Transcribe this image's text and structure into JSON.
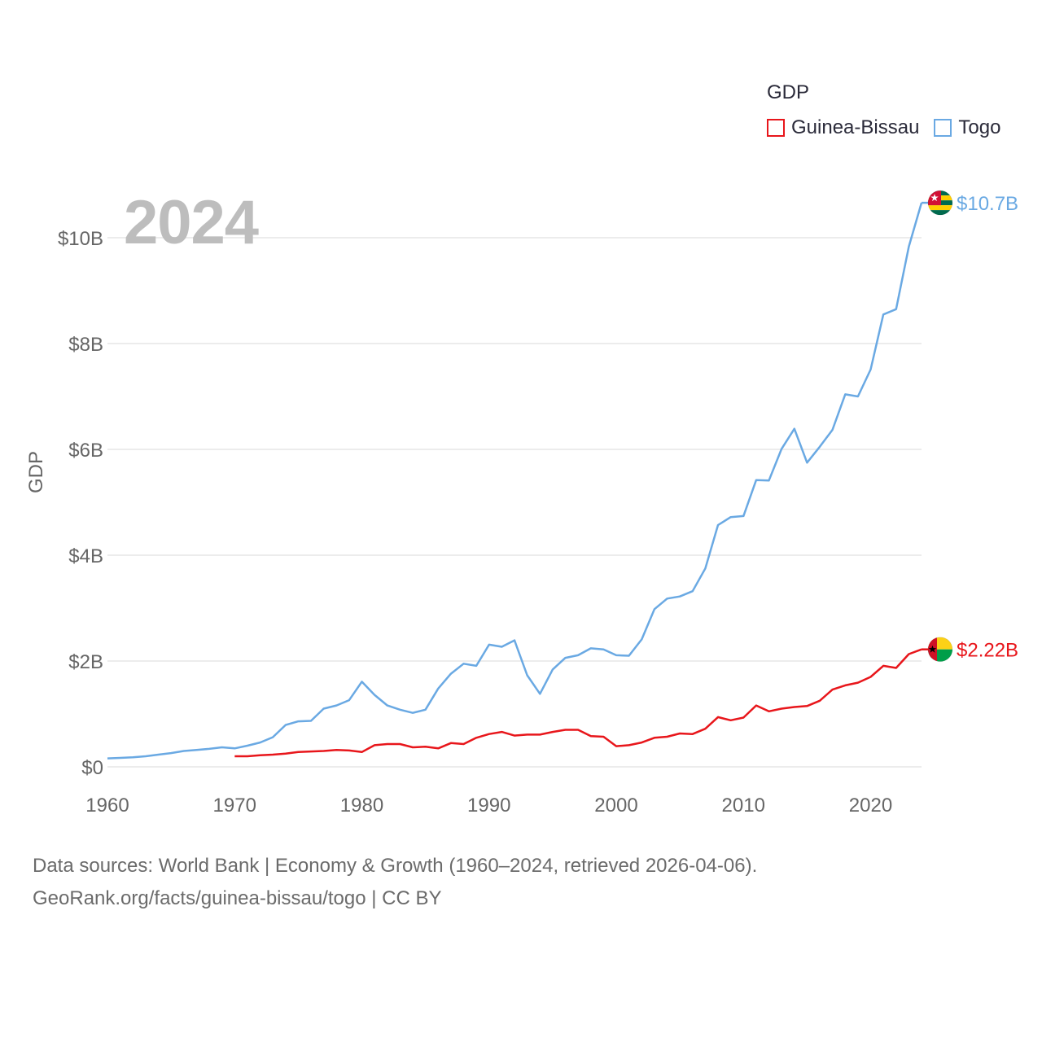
{
  "colors": {
    "togo": "#6aa9e3",
    "guinea_bissau": "#e8161b",
    "grid": "#e6e6e6",
    "axis_text": "#666666"
  },
  "legend": {
    "title": "GDP",
    "items": [
      {
        "label": "Guinea-Bissau",
        "color": "#e8161b"
      },
      {
        "label": "Togo",
        "color": "#6aa9e3"
      }
    ]
  },
  "year_label": "2024",
  "source": {
    "line1": "Data sources: World Bank | Economy & Growth (1960–2024, retrieved 2026-04-06).",
    "line2": "GeoRank.org/facts/guinea-bissau/togo | CC BY"
  },
  "chart_data": {
    "type": "line",
    "ylabel": "GDP",
    "xlabel": "",
    "xlim": [
      1960,
      2024
    ],
    "ylim": [
      0,
      10.7
    ],
    "x_ticks": [
      "1960",
      "1970",
      "1980",
      "1990",
      "2000",
      "2010",
      "2020"
    ],
    "y_ticks": [
      {
        "value": 0,
        "label": "$0"
      },
      {
        "value": 2,
        "label": "$2B"
      },
      {
        "value": 4,
        "label": "$4B"
      },
      {
        "value": 6,
        "label": "$6B"
      },
      {
        "value": 8,
        "label": "$8B"
      },
      {
        "value": 10,
        "label": "$10B"
      }
    ],
    "units": "USD billions",
    "series": [
      {
        "name": "Togo",
        "end_label": "$10.7B",
        "start_year": 1960,
        "values": [
          0.16,
          0.17,
          0.18,
          0.2,
          0.23,
          0.26,
          0.3,
          0.32,
          0.34,
          0.37,
          0.35,
          0.4,
          0.46,
          0.56,
          0.79,
          0.86,
          0.87,
          1.1,
          1.16,
          1.26,
          1.61,
          1.36,
          1.16,
          1.08,
          1.02,
          1.08,
          1.48,
          1.76,
          1.95,
          1.91,
          2.31,
          2.27,
          2.39,
          1.73,
          1.38,
          1.84,
          2.06,
          2.11,
          2.24,
          2.22,
          2.11,
          2.1,
          2.41,
          2.98,
          3.18,
          3.22,
          3.32,
          3.75,
          4.57,
          4.72,
          4.74,
          5.42,
          5.41,
          6.01,
          6.39,
          5.75,
          6.05,
          6.37,
          7.04,
          7.0,
          7.51,
          8.55,
          8.65,
          9.83,
          10.66
        ]
      },
      {
        "name": "Guinea-Bissau",
        "end_label": "$2.22B",
        "start_year": 1970,
        "values": [
          0.2,
          0.2,
          0.22,
          0.23,
          0.25,
          0.28,
          0.29,
          0.3,
          0.32,
          0.31,
          0.28,
          0.41,
          0.43,
          0.43,
          0.37,
          0.38,
          0.35,
          0.45,
          0.43,
          0.55,
          0.62,
          0.66,
          0.59,
          0.61,
          0.61,
          0.66,
          0.7,
          0.7,
          0.58,
          0.57,
          0.39,
          0.41,
          0.46,
          0.55,
          0.57,
          0.63,
          0.62,
          0.72,
          0.94,
          0.88,
          0.93,
          1.16,
          1.05,
          1.1,
          1.13,
          1.15,
          1.25,
          1.46,
          1.54,
          1.59,
          1.7,
          1.91,
          1.87,
          2.13,
          2.22
        ]
      }
    ]
  }
}
